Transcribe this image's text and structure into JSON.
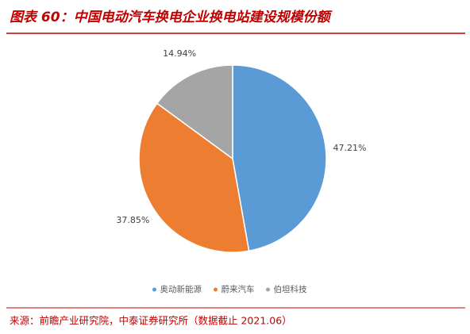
{
  "chart_data": {
    "type": "pie",
    "title": "图表 60：中国电动汽车换电企业换电站建设规模份额",
    "categories": [
      "奥动新能源",
      "蔚来汽车",
      "伯坦科技"
    ],
    "values": [
      47.21,
      37.85,
      14.94
    ],
    "value_labels": [
      "47.21%",
      "37.85%",
      "14.94%"
    ],
    "colors": [
      "#5b9bd5",
      "#ed7d31",
      "#a5a5a5"
    ],
    "legend": "bottom",
    "source": "来源：前瞻产业研究院，中泰证券研究所（数据截止 2021.06）"
  }
}
